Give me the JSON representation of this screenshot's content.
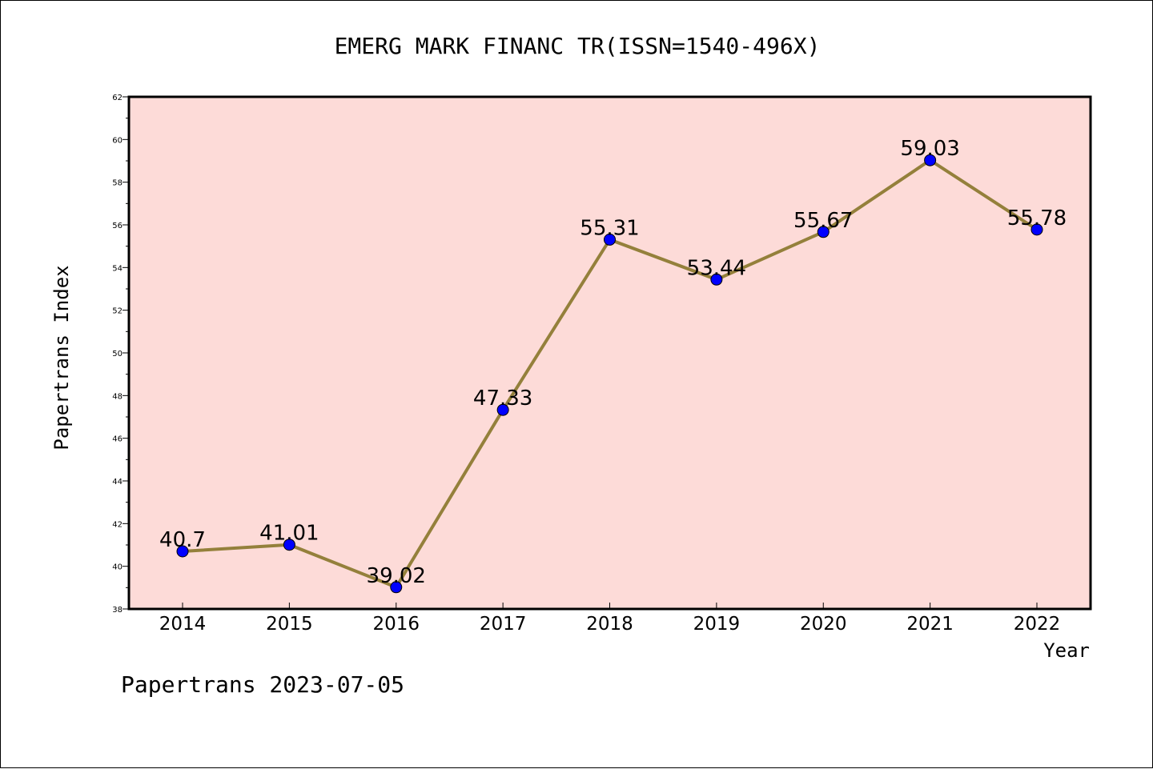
{
  "chart_data": {
    "type": "line",
    "title": "EMERG MARK FINANC TR(ISSN=1540-496X)",
    "xlabel": "Year",
    "ylabel": "Papertrans Index",
    "categories": [
      "2014",
      "2015",
      "2016",
      "2017",
      "2018",
      "2019",
      "2020",
      "2021",
      "2022"
    ],
    "values": [
      40.7,
      41.01,
      39.02,
      47.33,
      55.31,
      53.44,
      55.67,
      59.03,
      55.78
    ],
    "data_labels": [
      "40.7",
      "41.01",
      "39.02",
      "47.33",
      "55.31",
      "53.44",
      "55.67",
      "59.03",
      "55.78"
    ],
    "ylim": [
      38,
      62
    ],
    "yticks": [
      38,
      40,
      42,
      44,
      46,
      48,
      50,
      52,
      54,
      56,
      58,
      60,
      62
    ],
    "ytick_labels": [
      "38",
      "40",
      "42",
      "44",
      "46",
      "48",
      "50",
      "52",
      "54",
      "56",
      "58",
      "60",
      "62"
    ],
    "grid": false,
    "colors": {
      "plot_bg": "#fddbd8",
      "line": "#94803b",
      "marker": "#0000ff",
      "marker_edge": "#000000"
    }
  },
  "footer": {
    "text": "Papertrans 2023-07-05"
  }
}
